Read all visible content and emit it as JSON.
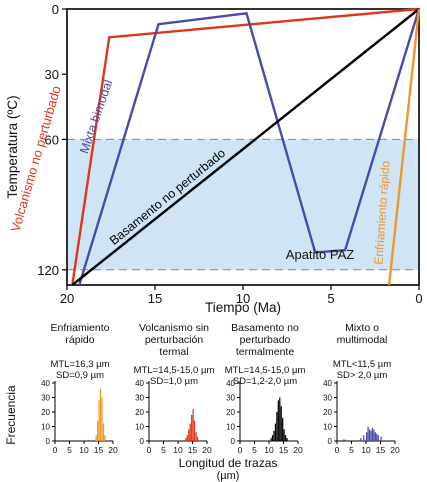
{
  "chart_data": [
    {
      "type": "line",
      "xlabel": "Tiempo (Ma)",
      "ylabel": "Temperatura (ºC)",
      "xlim": [
        20,
        0
      ],
      "ylim": [
        0,
        127
      ],
      "x_ticks": [
        20,
        15,
        10,
        5,
        0
      ],
      "y_ticks": [
        0,
        30,
        60,
        120
      ],
      "paz": {
        "range": [
          60,
          120
        ],
        "label": "Apatito PAZ",
        "color": "#cfe5f5"
      },
      "series": [
        {
          "name": "Volcanismo no perturbado",
          "color": "#e0361b",
          "x": [
            19.7,
            17.6,
            0
          ],
          "y": [
            127,
            13,
            0
          ]
        },
        {
          "name": "Mixta bimodal",
          "color": "#4a4aa8",
          "x": [
            19.3,
            14.8,
            9.8,
            5.9,
            4.2,
            0
          ],
          "y": [
            127,
            7,
            2,
            112,
            111,
            0
          ]
        },
        {
          "name": "Basamento no perturbado",
          "color": "#000000",
          "x": [
            19.7,
            0
          ],
          "y": [
            127,
            0
          ]
        },
        {
          "name": "Enfriamiento rápido",
          "color": "#f0962c",
          "x": [
            1.7,
            0
          ],
          "y": [
            127,
            0
          ]
        }
      ]
    },
    {
      "type": "bar",
      "group_xlabel": "Longitud de trazas",
      "group_xunit": "(µm)",
      "ylabel": "Frecuencia",
      "x_ticks": [
        0,
        5,
        10,
        15,
        20
      ],
      "y_ticks": [
        0,
        10,
        20,
        30,
        40
      ],
      "panels": [
        {
          "title": [
            "Enfriamiento",
            "rápido"
          ],
          "mtl": "MTL=16,3 µm",
          "sd": "SD=0,9 µm",
          "color": "#f0962c",
          "bins": [
            [
              14,
              4
            ],
            [
              14.5,
              14
            ],
            [
              15,
              28
            ],
            [
              15.5,
              36
            ],
            [
              16,
              30
            ],
            [
              16.5,
              12
            ],
            [
              17,
              4
            ]
          ]
        },
        {
          "title": [
            "Volcanismo sin",
            "perturbación",
            "termal"
          ],
          "mtl": "MTL=14,5-15,0 µm",
          "sd": "SD=1,0 µm",
          "color": "#e0361b",
          "bins": [
            [
              12.5,
              2
            ],
            [
              13,
              4
            ],
            [
              13.5,
              8
            ],
            [
              14,
              12
            ],
            [
              14.5,
              18
            ],
            [
              15,
              22
            ],
            [
              15.5,
              14
            ],
            [
              16,
              6
            ],
            [
              16.5,
              3
            ]
          ]
        },
        {
          "title": [
            "Basamento no",
            "perturbado",
            "termalmente"
          ],
          "mtl": "MTL=14,5-15,0 µm",
          "sd": "SD=1,2-2,0 µm",
          "color": "#000000",
          "bins": [
            [
              10.5,
              2
            ],
            [
              11,
              4
            ],
            [
              11.5,
              7
            ],
            [
              12,
              12
            ],
            [
              12.5,
              20
            ],
            [
              13,
              28
            ],
            [
              13.5,
              30
            ],
            [
              14,
              24
            ],
            [
              14.5,
              16
            ],
            [
              15,
              8
            ],
            [
              15.5,
              4
            ],
            [
              16,
              2
            ]
          ]
        },
        {
          "title": [
            "Mixto o",
            "multimodal"
          ],
          "mtl": "MTL<11,5 µm",
          "sd": "SD> 2,0 µm",
          "color": "#4a4aa8",
          "bins": [
            [
              2,
              1
            ],
            [
              2.5,
              1
            ],
            [
              8,
              2
            ],
            [
              9,
              4
            ],
            [
              10,
              6
            ],
            [
              10.5,
              10
            ],
            [
              11,
              8
            ],
            [
              11.5,
              7
            ],
            [
              12,
              9
            ],
            [
              12.5,
              8
            ],
            [
              13,
              6
            ],
            [
              13.5,
              5
            ],
            [
              14,
              4
            ],
            [
              15,
              3
            ]
          ]
        }
      ]
    }
  ]
}
